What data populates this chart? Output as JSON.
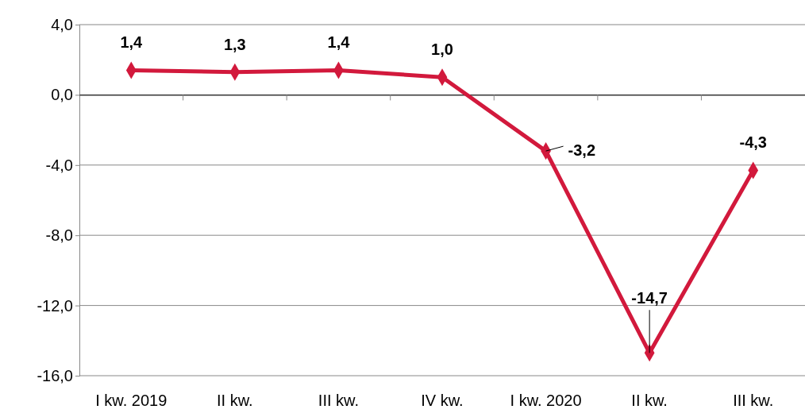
{
  "chart_data": {
    "type": "line",
    "categories": [
      "I kw. 2019",
      "II kw.",
      "III kw.",
      "IV kw.",
      "I kw. 2020",
      "II kw.",
      "III kw."
    ],
    "series": [
      {
        "color": "#d2193c",
        "values": [
          1.4,
          1.3,
          1.4,
          1.0,
          -3.2,
          -14.7,
          -4.3
        ],
        "value_labels": [
          "1,4",
          "1,3",
          "1,4",
          "1,0",
          "-3,2",
          "-14,7",
          "-4,3"
        ]
      }
    ],
    "ylim": [
      -16,
      4
    ],
    "yticks": [
      {
        "value": 4,
        "label": "4,0"
      },
      {
        "value": 0,
        "label": "0,0"
      },
      {
        "value": -4,
        "label": "-4,0"
      },
      {
        "value": -8,
        "label": "-8,0"
      },
      {
        "value": -12,
        "label": "-12,0"
      },
      {
        "value": -16,
        "label": "-16,0"
      }
    ],
    "grid": "y",
    "marker": "diamond",
    "line_style": "solid"
  }
}
